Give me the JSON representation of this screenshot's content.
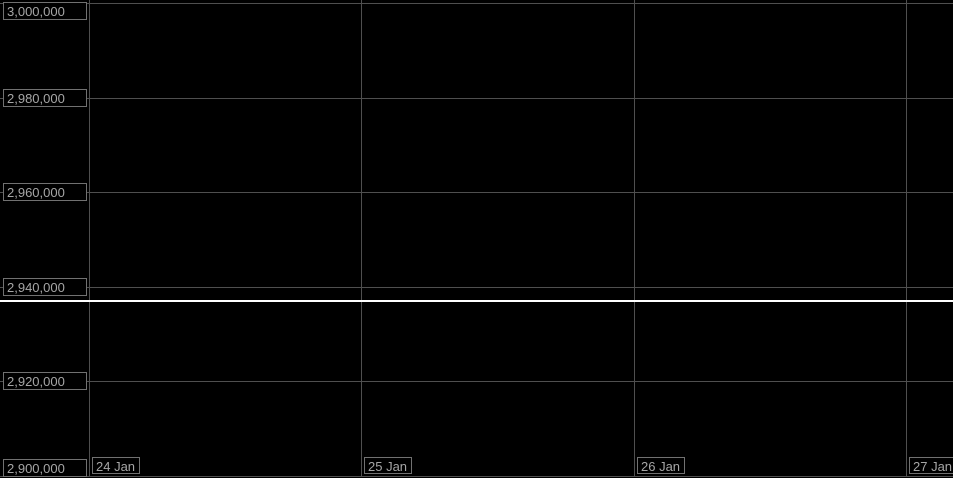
{
  "chart": {
    "background": "#000000",
    "grid_color": "#4f4f4f",
    "label_text_color": "#a6a6a6",
    "label_border_color": "#717171",
    "price_line_color": "#ffffff"
  },
  "chart_data": {
    "type": "line",
    "title": "",
    "grid": true,
    "legend": false,
    "background": "#000000",
    "x_axis": {
      "tick_labels": [
        "24 Jan",
        "25 Jan",
        "26 Jan",
        "27 Jan"
      ]
    },
    "y_axis": {
      "min": 2900000,
      "max": 3000000,
      "tick_interval": 20000,
      "ticks": [
        3000000,
        2980000,
        2960000,
        2940000,
        2920000,
        2900000
      ],
      "tick_labels": [
        "3,000,000",
        "2,980,000",
        "2,960,000",
        "2,940,000",
        "2,920,000",
        "2,900,000"
      ]
    },
    "series": [],
    "annotations": [
      {
        "type": "horizontal-price-line",
        "value": 2936900,
        "color": "#ffffff"
      }
    ]
  }
}
